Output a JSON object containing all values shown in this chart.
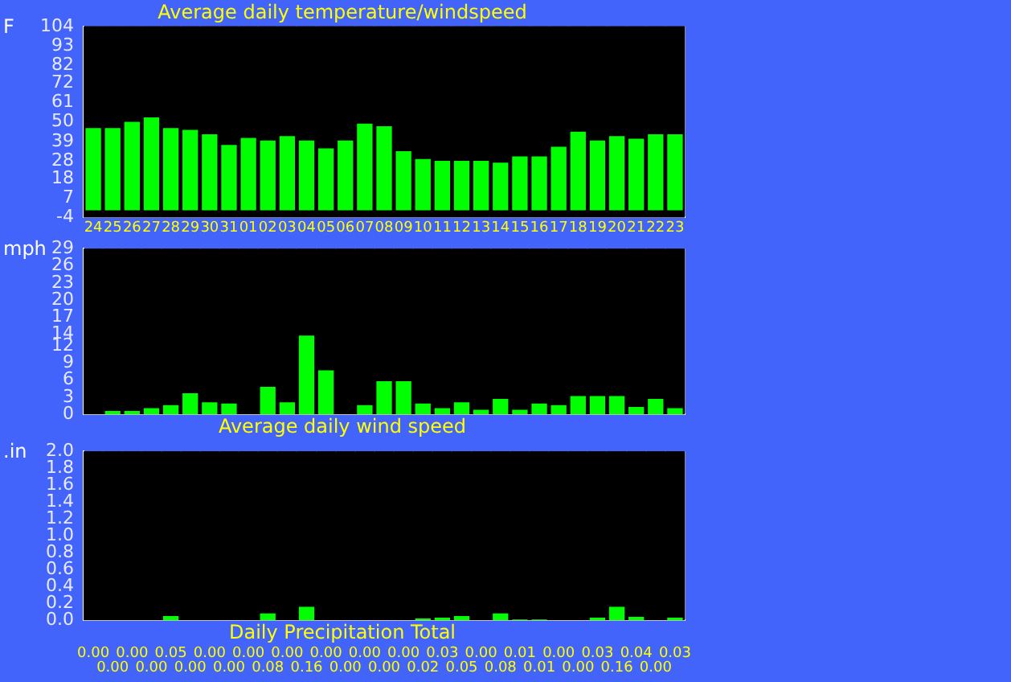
{
  "chart_data": [
    {
      "type": "bar",
      "title": "Average daily temperature/windspeed",
      "ylabel": "F",
      "categories": [
        "24",
        "25",
        "26",
        "27",
        "28",
        "29",
        "30",
        "31",
        "01",
        "02",
        "03",
        "04",
        "05",
        "06",
        "07",
        "08",
        "09",
        "10",
        "11",
        "12",
        "13",
        "14",
        "15",
        "16",
        "17",
        "18",
        "19",
        "20",
        "21",
        "22",
        "23"
      ],
      "values": [
        46.5,
        46.5,
        50,
        52.5,
        46.5,
        45.5,
        43,
        37,
        41,
        39.5,
        42,
        39.5,
        35,
        39.5,
        49,
        47.5,
        33.5,
        29,
        28,
        28,
        28,
        27,
        30.5,
        30.5,
        36,
        44.5,
        39.5,
        42,
        40.5,
        43,
        43
      ],
      "color": "#00ff00",
      "ylim": [
        -4,
        104
      ],
      "yticks": [
        -4,
        7,
        18,
        28,
        39,
        50,
        61,
        72,
        82,
        93,
        104
      ],
      "grid": "x"
    },
    {
      "type": "bar",
      "title": "Average daily wind speed",
      "ylabel": "mph",
      "categories": [
        "24",
        "25",
        "26",
        "27",
        "28",
        "29",
        "30",
        "31",
        "01",
        "02",
        "03",
        "04",
        "05",
        "06",
        "07",
        "08",
        "09",
        "10",
        "11",
        "12",
        "13",
        "14",
        "15",
        "16",
        "17",
        "18",
        "19",
        "20",
        "21",
        "22",
        "23"
      ],
      "values": [
        0,
        0.6,
        0.6,
        1.1,
        1.6,
        3.7,
        2.1,
        1.9,
        0,
        4.8,
        2.1,
        13.8,
        7.7,
        0,
        1.6,
        5.8,
        5.8,
        1.9,
        1.1,
        2.1,
        0.8,
        2.7,
        0.8,
        1.9,
        1.6,
        3.2,
        3.2,
        3.2,
        1.3,
        2.7,
        1.1
      ],
      "color": "#00ff00",
      "ylim": [
        0,
        29
      ],
      "yticks": [
        0,
        3,
        6,
        9,
        12,
        14,
        17,
        20,
        23,
        26,
        29
      ],
      "grid": "x",
      "tick_labels": "y"
    },
    {
      "type": "bar",
      "title": "Daily Precipitation Total",
      "ylabel": ".in",
      "categories": [
        "24",
        "25",
        "26",
        "27",
        "28",
        "29",
        "30",
        "31",
        "01",
        "02",
        "03",
        "04",
        "05",
        "06",
        "07",
        "08",
        "09",
        "10",
        "11",
        "12",
        "13",
        "14",
        "15",
        "16",
        "17",
        "18",
        "19",
        "20",
        "21",
        "22",
        "23"
      ],
      "values": [
        0,
        0,
        0,
        0,
        0.05,
        0,
        0,
        0,
        0,
        0.08,
        0,
        0.16,
        0,
        0,
        0,
        0,
        0,
        0.02,
        0.03,
        0.05,
        0,
        0.08,
        0.01,
        0.01,
        0,
        0,
        0.03,
        0.16,
        0.04,
        0,
        0.03
      ],
      "color": "#00ff00",
      "value_labels": [
        "0.00",
        "0.00",
        "0.00",
        "0.00",
        "0.05",
        "0.00",
        "0.00",
        "0.00",
        "0.00",
        "0.08",
        "0.00",
        "0.16",
        "0.00",
        "0.00",
        "0.00",
        "0.00",
        "0.00",
        "0.02",
        "0.03",
        "0.05",
        "0.00",
        "0.08",
        "0.01",
        "0.01",
        "0.00",
        "0.00",
        "0.03",
        "0.16",
        "0.04",
        "0.00",
        "0.03"
      ],
      "ylim": [
        0,
        2
      ],
      "yticks": [
        {
          "value": 0,
          "label": "0.0"
        },
        0.2,
        0.4,
        0.6,
        0.8,
        {
          "value": 1,
          "label": "1.0"
        },
        1.2,
        1.4,
        1.6,
        1.8,
        {
          "value": 2,
          "label": "2.0"
        }
      ],
      "grid": "x",
      "tick_labels": "y"
    }
  ]
}
